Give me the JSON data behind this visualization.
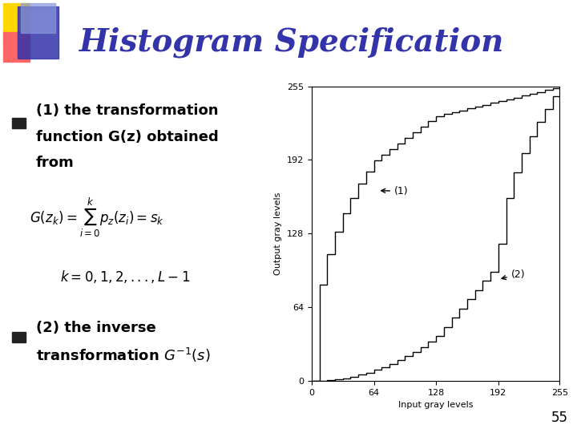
{
  "title": "Histogram Specification",
  "title_color": "#3333AA",
  "title_fontsize": 28,
  "bg_color": "#FFFFFF",
  "slide_number": "55",
  "bullet1_line1": "(1) the transformation",
  "bullet1_line2": "function G(z) obtained",
  "bullet1_line3": "from",
  "bullet2_line1": "(2) the inverse",
  "bullet2_line2": "transformation G",
  "formula1": "G(z_k) = \\sum_{i=0}^{k} p_z(z_i) = s_k",
  "formula2": "k = 0,1,2,...,L-1",
  "xlabel": "Input gray levels",
  "ylabel": "Output gray levels",
  "xticks": [
    0,
    64,
    128,
    192,
    255
  ],
  "yticks": [
    0,
    64,
    128,
    192,
    255
  ],
  "header_bar_colors": [
    "#FFD700",
    "#FF6666",
    "#3333AA",
    "#6699FF"
  ],
  "curve1_label": "(1)",
  "curve2_label": "(2)"
}
